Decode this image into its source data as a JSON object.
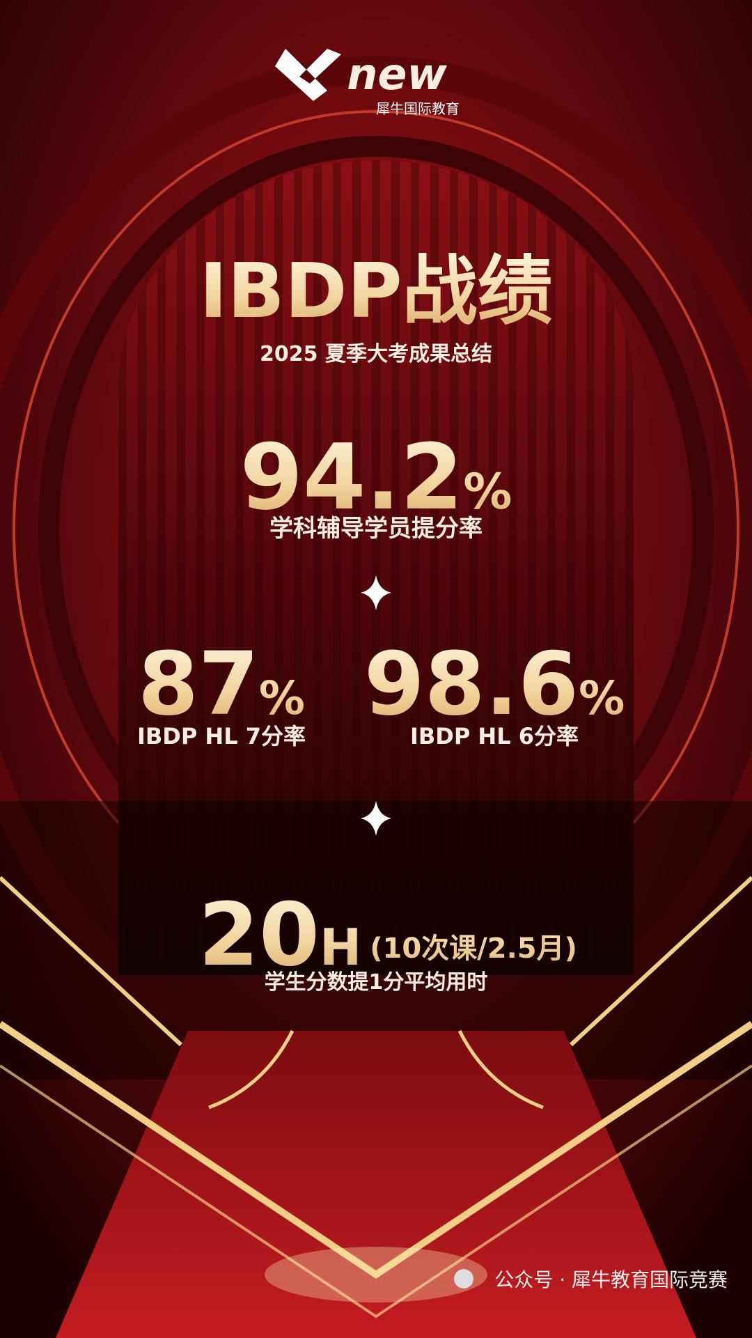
{
  "logo": {
    "brand": "new",
    "subtitle": "犀牛国际教育"
  },
  "header": {
    "title": "IBDP战绩",
    "subtitle": "2025 夏季大考成果总结"
  },
  "stats": [
    {
      "value": "94.2",
      "unit": "%",
      "label": "学科辅导学员提分率"
    },
    {
      "value": "87",
      "unit": "%",
      "label": "IBDP HL 7分率"
    },
    {
      "value": "98.6",
      "unit": "%",
      "label": "IBDP HL 6分率"
    },
    {
      "value": "20",
      "unit": "H",
      "note": "(10次课/2.5月)",
      "label": "学生分数提1分平均用时"
    }
  ],
  "footer": {
    "source": "公众号 · 犀牛教育国际竞赛"
  }
}
